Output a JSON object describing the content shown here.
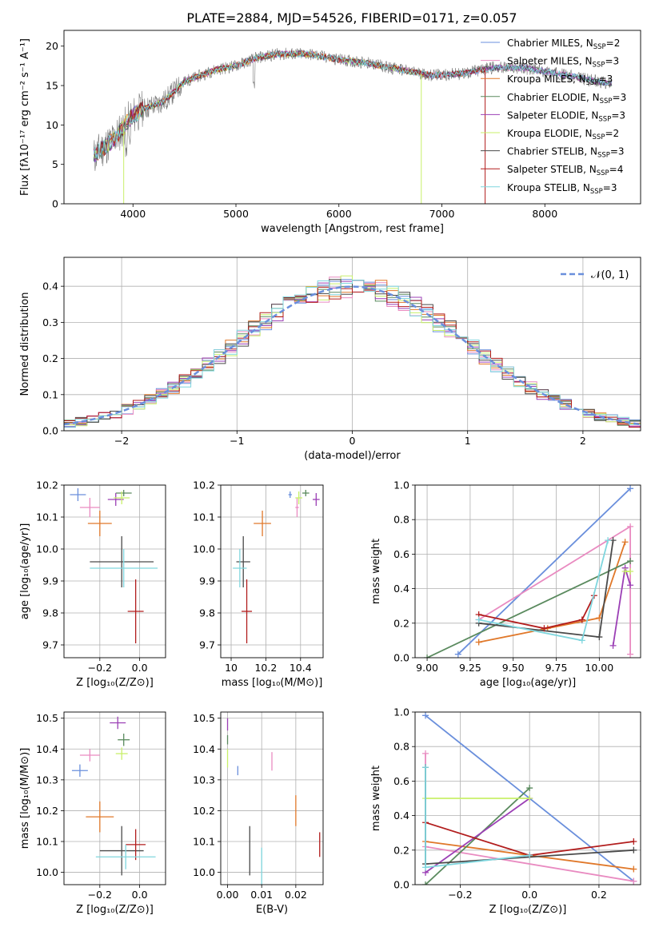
{
  "colors": {
    "c1": "#6a8fdc",
    "c2": "#e98bc1",
    "c3": "#e0782a",
    "c4": "#5a8a5e",
    "c5": "#9b3fb5",
    "c6": "#c8f06a",
    "c7": "#4a4a4a",
    "c8": "#b21d1d",
    "c9": "#7fd6de"
  },
  "chart_data": [
    {
      "id": "spectrum",
      "type": "line",
      "title": "PLATE=2884, MJD=54526, FIBERID=0171, z=0.057",
      "xlabel": "wavelength [Angstrom, rest frame]",
      "ylabel": "Flux [fλ10⁻¹⁷ erg cm⁻² s⁻¹ A⁻¹]",
      "xlim": [
        3330,
        8930
      ],
      "ylim": [
        0,
        22
      ],
      "xticks": [
        4000,
        5000,
        6000,
        7000,
        8000
      ],
      "yticks": [
        0,
        5,
        10,
        15,
        20
      ],
      "grid": false,
      "legend_position": "top-right",
      "legend": [
        {
          "label": "Chabrier MILES, N",
          "sub": "SSP",
          "suffix": "=2",
          "color": "c1"
        },
        {
          "label": "Salpeter MILES, N",
          "sub": "SSP",
          "suffix": "=3",
          "color": "c2"
        },
        {
          "label": "Kroupa MILES, N",
          "sub": "SSP",
          "suffix": "=3",
          "color": "c3"
        },
        {
          "label": "Chabrier ELODIE, N",
          "sub": "SSP",
          "suffix": "=3",
          "color": "c4"
        },
        {
          "label": "Salpeter ELODIE, N",
          "sub": "SSP",
          "suffix": "=3",
          "color": "c5"
        },
        {
          "label": "Kroupa ELODIE, N",
          "sub": "SSP",
          "suffix": "=2",
          "color": "c6"
        },
        {
          "label": "Chabrier STELIB, N",
          "sub": "SSP",
          "suffix": "=3",
          "color": "c7"
        },
        {
          "label": "Salpeter STELIB, N",
          "sub": "SSP",
          "suffix": "=4",
          "color": "c8"
        },
        {
          "label": "Kroupa STELIB, N",
          "sub": "SSP",
          "suffix": "=3",
          "color": "c9"
        }
      ],
      "continuum": [
        [
          3620,
          6
        ],
        [
          3700,
          7
        ],
        [
          3800,
          8
        ],
        [
          3900,
          9.5
        ],
        [
          3980,
          11
        ],
        [
          4100,
          12
        ],
        [
          4300,
          13
        ],
        [
          4500,
          15.5
        ],
        [
          4800,
          17
        ],
        [
          5000,
          17.5
        ],
        [
          5200,
          18.5
        ],
        [
          5400,
          19
        ],
        [
          5700,
          19
        ],
        [
          6000,
          18.3
        ],
        [
          6300,
          17.8
        ],
        [
          6600,
          17
        ],
        [
          6900,
          16.3
        ],
        [
          7200,
          16.5
        ],
        [
          7500,
          17.3
        ],
        [
          7800,
          17.2
        ],
        [
          8100,
          16.6
        ],
        [
          8400,
          15.8
        ],
        [
          8650,
          15.2
        ]
      ],
      "model_ranges": [
        {
          "color": "c1",
          "x": [
            3620,
            8650
          ]
        },
        {
          "color": "c2",
          "x": [
            3620,
            8650
          ]
        },
        {
          "color": "c3",
          "x": [
            3620,
            7420
          ]
        },
        {
          "color": "c4",
          "x": [
            3620,
            8650
          ]
        },
        {
          "color": "c5",
          "x": [
            3620,
            8650
          ]
        },
        {
          "color": "c6",
          "x": [
            3620,
            6800
          ]
        },
        {
          "color": "c7",
          "x": [
            3620,
            8650
          ]
        },
        {
          "color": "c8",
          "x": [
            3620,
            7420
          ]
        },
        {
          "color": "c9",
          "x": [
            3620,
            8650
          ]
        }
      ],
      "drops": [
        {
          "x": 3910,
          "color": "c6"
        },
        {
          "x": 6800,
          "color": "c6"
        },
        {
          "x": 7420,
          "color": "c8"
        }
      ]
    },
    {
      "id": "residuals",
      "type": "step",
      "xlabel": "(data-model)/error",
      "ylabel": "Normed distribution",
      "xlim": [
        -2.5,
        2.5
      ],
      "ylim": [
        0,
        0.48
      ],
      "xticks": [
        -2,
        -1,
        0,
        1,
        2
      ],
      "yticks": [
        0.0,
        0.1,
        0.2,
        0.3,
        0.4
      ],
      "grid": true,
      "legend_position": "top-right",
      "legend": [
        {
          "label": "𝒩(0, 1)",
          "color": "c1",
          "style": "dashed"
        }
      ],
      "bin_width": 0.1
    },
    {
      "id": "age_vs_Z",
      "type": "errorbar",
      "xlabel": "Z [log₁₀(Z/Z⊙)]",
      "ylabel": "age  [log₁₀(age/yr)]",
      "xlim": [
        -0.38,
        0.13
      ],
      "ylim": [
        9.66,
        10.2
      ],
      "xticks": [
        -0.2,
        0.0
      ],
      "yticks": [
        9.7,
        9.8,
        9.9,
        10.0,
        10.1,
        10.2
      ],
      "grid": true,
      "points": [
        {
          "c": "c1",
          "x": -0.31,
          "y": 10.17,
          "xe": 0.04,
          "ye": 0.02
        },
        {
          "c": "c2",
          "x": -0.25,
          "y": 10.13,
          "xe": 0.05,
          "ye": 0.03
        },
        {
          "c": "c3",
          "x": -0.2,
          "y": 10.08,
          "xe": 0.06,
          "ye": 0.04
        },
        {
          "c": "c4",
          "x": -0.08,
          "y": 10.175,
          "xe": 0.04,
          "ye": 0.01
        },
        {
          "c": "c5",
          "x": -0.12,
          "y": 10.155,
          "xe": 0.04,
          "ye": 0.02
        },
        {
          "c": "c6",
          "x": -0.09,
          "y": 10.16,
          "xe": 0.04,
          "ye": 0.02
        },
        {
          "c": "c7",
          "x": -0.09,
          "y": 9.96,
          "xe": 0.16,
          "ye": 0.08
        },
        {
          "c": "c8",
          "x": -0.02,
          "y": 9.805,
          "xe": 0.04,
          "ye": 0.1
        },
        {
          "c": "c9",
          "x": -0.08,
          "y": 9.94,
          "xe": 0.17,
          "ye": 0.06
        }
      ]
    },
    {
      "id": "age_vs_mass",
      "type": "errorbar",
      "xlabel": "mass [log₁₀(M/M⊙)]",
      "ylabel": "",
      "xlim": [
        9.94,
        10.53
      ],
      "ylim": [
        9.66,
        10.2
      ],
      "xticks": [
        10.0,
        10.2,
        10.4
      ],
      "yticks": [
        9.7,
        9.8,
        9.9,
        10.0,
        10.1,
        10.2
      ],
      "grid": true,
      "points": [
        {
          "c": "c1",
          "x": 10.34,
          "y": 10.17,
          "xe": 0.01,
          "ye": 0.01
        },
        {
          "c": "c2",
          "x": 10.38,
          "y": 10.13,
          "xe": 0.01,
          "ye": 0.03
        },
        {
          "c": "c3",
          "x": 10.18,
          "y": 10.08,
          "xe": 0.05,
          "ye": 0.04
        },
        {
          "c": "c4",
          "x": 10.43,
          "y": 10.175,
          "xe": 0.02,
          "ye": 0.01
        },
        {
          "c": "c5",
          "x": 10.49,
          "y": 10.155,
          "xe": 0.02,
          "ye": 0.02
        },
        {
          "c": "c6",
          "x": 10.39,
          "y": 10.16,
          "xe": 0.02,
          "ye": 0.02
        },
        {
          "c": "c7",
          "x": 10.07,
          "y": 9.96,
          "xe": 0.04,
          "ye": 0.08
        },
        {
          "c": "c8",
          "x": 10.09,
          "y": 9.805,
          "xe": 0.03,
          "ye": 0.1
        },
        {
          "c": "c9",
          "x": 10.05,
          "y": 9.94,
          "xe": 0.04,
          "ye": 0.06
        }
      ]
    },
    {
      "id": "massweight_vs_age",
      "type": "line",
      "xlabel": "age  [log₁₀(age/yr)]",
      "ylabel": "mass weight",
      "xlim": [
        8.93,
        10.24
      ],
      "ylim": [
        0,
        1.0
      ],
      "xticks": [
        9.0,
        9.25,
        9.5,
        9.75,
        10.0
      ],
      "xticklabels": [
        "9.00",
        "9.25",
        "9.50",
        "9.75",
        "10.00"
      ],
      "yticks": [
        0.0,
        0.2,
        0.4,
        0.6,
        0.8,
        1.0
      ],
      "grid": true,
      "series": [
        {
          "c": "c1",
          "x": [
            9.18,
            10.18
          ],
          "y": [
            0.02,
            0.98
          ]
        },
        {
          "c": "c2",
          "x": [
            9.3,
            10.18,
            10.18
          ],
          "y": [
            0.22,
            0.76,
            0.02
          ]
        },
        {
          "c": "c3",
          "x": [
            9.3,
            9.7,
            10.0,
            10.15
          ],
          "y": [
            0.09,
            0.17,
            0.23,
            0.67
          ]
        },
        {
          "c": "c4",
          "x": [
            9.0,
            10.18
          ],
          "y": [
            0.0,
            0.56
          ]
        },
        {
          "c": "c5",
          "x": [
            10.08,
            10.15,
            10.18
          ],
          "y": [
            0.07,
            0.52,
            0.42
          ]
        },
        {
          "c": "c6",
          "x": [
            10.15,
            10.18
          ],
          "y": [
            0.5,
            0.5
          ]
        },
        {
          "c": "c7",
          "x": [
            9.3,
            10.0,
            10.08
          ],
          "y": [
            0.2,
            0.12,
            0.68
          ]
        },
        {
          "c": "c8",
          "x": [
            9.3,
            9.68,
            9.9,
            9.97
          ],
          "y": [
            0.25,
            0.17,
            0.22,
            0.36
          ]
        },
        {
          "c": "c9",
          "x": [
            9.3,
            9.9,
            10.05
          ],
          "y": [
            0.22,
            0.1,
            0.68
          ]
        }
      ]
    },
    {
      "id": "mass_vs_Z",
      "type": "errorbar",
      "xlabel": "Z [log₁₀(Z/Z⊙)]",
      "ylabel": "mass [log₁₀(M/M⊙)]",
      "xlim": [
        -0.38,
        0.13
      ],
      "ylim": [
        9.96,
        10.52
      ],
      "xticks": [
        -0.2,
        0.0
      ],
      "yticks": [
        10.0,
        10.1,
        10.2,
        10.3,
        10.4,
        10.5
      ],
      "grid": true,
      "points": [
        {
          "c": "c1",
          "x": -0.3,
          "y": 10.33,
          "xe": 0.04,
          "ye": 0.02
        },
        {
          "c": "c2",
          "x": -0.25,
          "y": 10.38,
          "xe": 0.05,
          "ye": 0.02
        },
        {
          "c": "c3",
          "x": -0.2,
          "y": 10.18,
          "xe": 0.07,
          "ye": 0.05
        },
        {
          "c": "c4",
          "x": -0.08,
          "y": 10.43,
          "xe": 0.03,
          "ye": 0.02
        },
        {
          "c": "c5",
          "x": -0.11,
          "y": 10.485,
          "xe": 0.04,
          "ye": 0.02
        },
        {
          "c": "c6",
          "x": -0.09,
          "y": 10.385,
          "xe": 0.03,
          "ye": 0.02
        },
        {
          "c": "c7",
          "x": -0.09,
          "y": 10.07,
          "xe": 0.11,
          "ye": 0.08
        },
        {
          "c": "c8",
          "x": -0.02,
          "y": 10.09,
          "xe": 0.05,
          "ye": 0.05
        },
        {
          "c": "c9",
          "x": -0.07,
          "y": 10.05,
          "xe": 0.15,
          "ye": 0.04
        }
      ]
    },
    {
      "id": "mass_vs_EBV",
      "type": "errorbar",
      "xlabel": "E(B-V)",
      "ylabel": "",
      "xlim": [
        -0.002,
        0.028
      ],
      "ylim": [
        9.96,
        10.52
      ],
      "xticks": [
        0.0,
        0.01,
        0.02
      ],
      "xticklabels": [
        "0.00",
        "0.01",
        "0.02"
      ],
      "yticks": [
        10.0,
        10.1,
        10.2,
        10.3,
        10.4,
        10.5
      ],
      "grid": true,
      "points": [
        {
          "c": "c1",
          "x": 0.003,
          "y": 10.33,
          "xe": 0,
          "ye": 0.015
        },
        {
          "c": "c2",
          "x": 0.013,
          "y": 10.36,
          "xe": 0,
          "ye": 0.03
        },
        {
          "c": "c3",
          "x": 0.02,
          "y": 10.2,
          "xe": 0,
          "ye": 0.05
        },
        {
          "c": "c4",
          "x": 0.0,
          "y": 10.43,
          "xe": 0,
          "ye": 0.015
        },
        {
          "c": "c5",
          "x": 0.0,
          "y": 10.48,
          "xe": 0,
          "ye": 0.02
        },
        {
          "c": "c6",
          "x": 0.0,
          "y": 10.37,
          "xe": 0,
          "ye": 0.03
        },
        {
          "c": "c7",
          "x": 0.0065,
          "y": 10.07,
          "xe": 0,
          "ye": 0.08
        },
        {
          "c": "c8",
          "x": 0.027,
          "y": 10.09,
          "xe": 0,
          "ye": 0.04
        },
        {
          "c": "c9",
          "x": 0.01,
          "y": 10.02,
          "xe": 0,
          "ye": 0.06
        }
      ]
    },
    {
      "id": "massweight_vs_Z",
      "type": "line",
      "xlabel": "Z [log₁₀(Z/Z⊙)]",
      "ylabel": "mass weight",
      "xlim": [
        -0.33,
        0.32
      ],
      "ylim": [
        0,
        1.0
      ],
      "xticks": [
        -0.2,
        0.0,
        0.2
      ],
      "yticks": [
        0.0,
        0.2,
        0.4,
        0.6,
        0.8,
        1.0
      ],
      "grid": true,
      "series": [
        {
          "c": "c1",
          "x": [
            -0.3,
            0.3
          ],
          "y": [
            0.98,
            0.02
          ]
        },
        {
          "c": "c2",
          "x": [
            -0.3,
            -0.3,
            0.3
          ],
          "y": [
            0.76,
            0.22,
            0.02
          ]
        },
        {
          "c": "c3",
          "x": [
            -0.3,
            0.3
          ],
          "y": [
            0.25,
            0.09
          ]
        },
        {
          "c": "c4",
          "x": [
            -0.3,
            0.0
          ],
          "y": [
            0.0,
            0.56
          ]
        },
        {
          "c": "c5",
          "x": [
            -0.3,
            0.0
          ],
          "y": [
            0.07,
            0.5
          ]
        },
        {
          "c": "c6",
          "x": [
            -0.3,
            0.0
          ],
          "y": [
            0.5,
            0.5
          ]
        },
        {
          "c": "c7",
          "x": [
            -0.3,
            -0.3,
            0.3
          ],
          "y": [
            0.68,
            0.12,
            0.2
          ]
        },
        {
          "c": "c8",
          "x": [
            -0.3,
            0.0,
            0.3
          ],
          "y": [
            0.36,
            0.17,
            0.25
          ]
        },
        {
          "c": "c9",
          "x": [
            -0.3,
            -0.3,
            0.0
          ],
          "y": [
            0.68,
            0.1,
            0.17
          ]
        }
      ]
    }
  ]
}
